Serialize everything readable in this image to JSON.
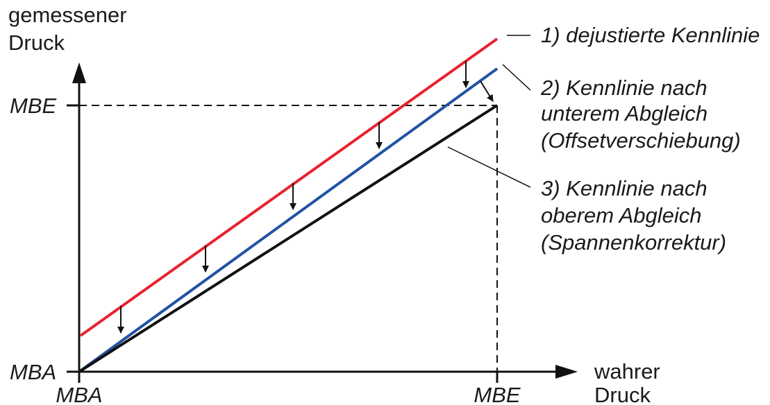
{
  "axes": {
    "y_label_lines": [
      "gemessener",
      "Druck"
    ],
    "x_label_lines": [
      "wahrer",
      "Druck"
    ],
    "y_tick_top": "MBE",
    "y_tick_bottom": "MBA",
    "x_tick_left": "MBA",
    "x_tick_right": "MBE"
  },
  "lines": [
    {
      "id": "line-1",
      "color": "#e8222e",
      "label_lines": [
        "1) dejustierte Kennlinie"
      ]
    },
    {
      "id": "line-2",
      "color": "#2152a3",
      "label_lines": [
        "2) Kennlinie nach",
        "unterem Abgleich",
        "(Offsetverschiebung)"
      ]
    },
    {
      "id": "line-3",
      "color": "#111111",
      "label_lines": [
        "3) Kennlinie nach",
        "oberem Abgleich",
        "(Spannenkorrektur)"
      ]
    }
  ]
}
